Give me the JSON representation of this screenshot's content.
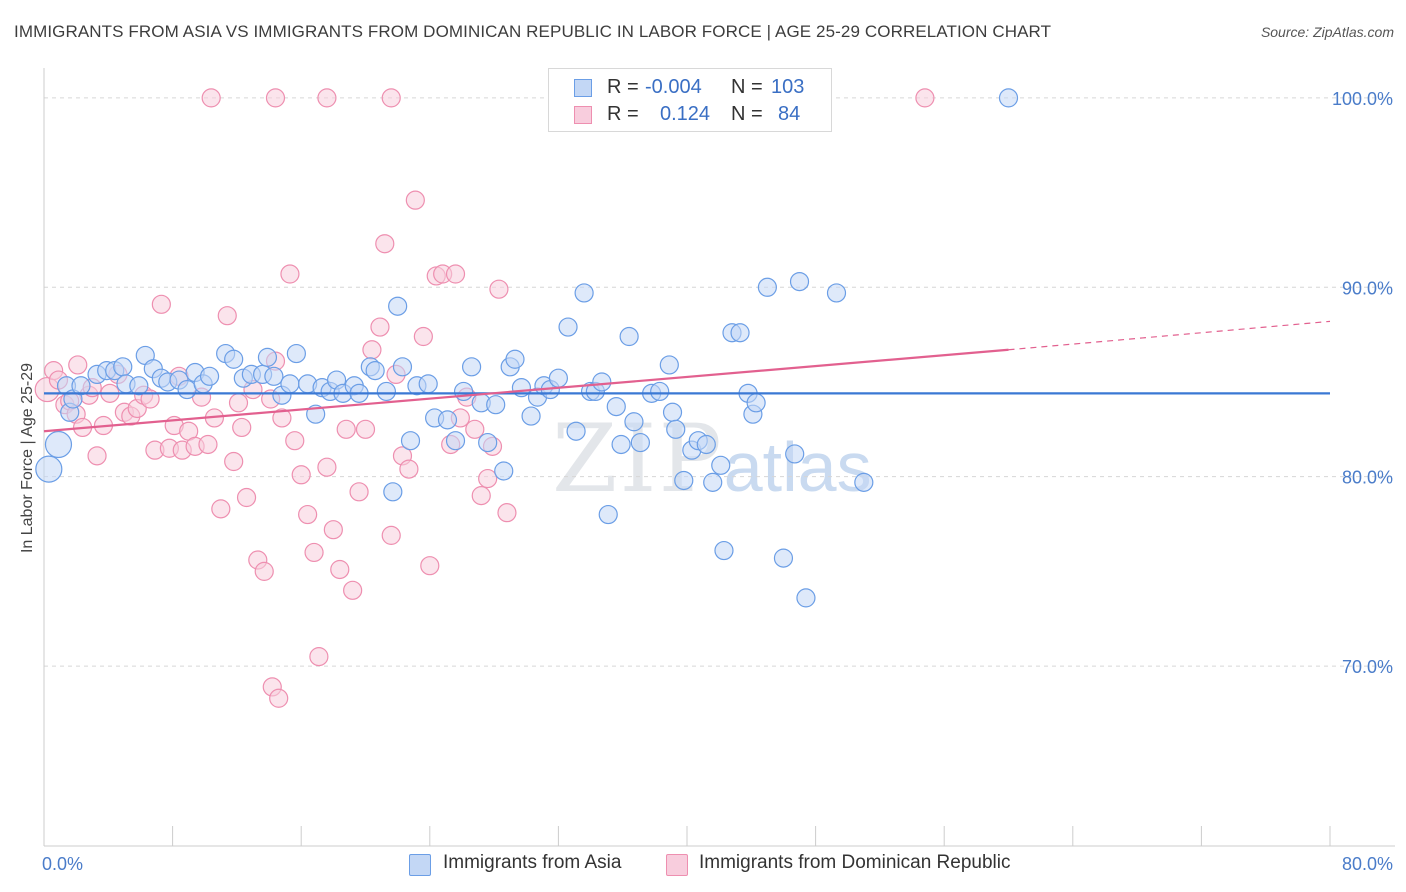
{
  "header": {
    "title": "IMMIGRANTS FROM ASIA VS IMMIGRANTS FROM DOMINICAN REPUBLIC IN LABOR FORCE | AGE 25-29 CORRELATION CHART",
    "source": "Source: ZipAtlas.com"
  },
  "watermark": {
    "zip": "ZIP",
    "atlas": "atlas"
  },
  "legend": {
    "rows": [
      {
        "r_label": "R =",
        "r_value": "-0.004",
        "n_label": "N =",
        "n_value": "103"
      },
      {
        "r_label": "R =",
        "r_value": "0.124",
        "n_label": "N =",
        "n_value": "84"
      }
    ]
  },
  "colors": {
    "asia": "#6b9ee6",
    "asia_fill": "#c3d7f5",
    "asia_line": "#3a78d4",
    "dom": "#ee8fb0",
    "dom_fill": "#f8cddd",
    "dom_line": "#e2608f",
    "tick_text": "#4a7cc9"
  },
  "chart_data": {
    "type": "scatter",
    "title": "IMMIGRANTS FROM ASIA VS IMMIGRANTS FROM DOMINICAN REPUBLIC IN LABOR FORCE | AGE 25-29 CORRELATION CHART",
    "xlabel": "",
    "ylabel": "In Labor Force | Age 25-29",
    "xlim": [
      0,
      80
    ],
    "ylim": [
      60.5,
      102
    ],
    "x_tick_labels": [
      "0.0%",
      "80.0%"
    ],
    "y_ticks": [
      70,
      80,
      90,
      100
    ],
    "y_tick_labels": [
      "70.0%",
      "80.0%",
      "90.0%",
      "100.0%"
    ],
    "grid": true,
    "legend_position": "top-center",
    "series": [
      {
        "name": "Immigrants from Asia",
        "color": "#6b9ee6",
        "trend": {
          "x": [
            0,
            80
          ],
          "y": [
            84.4,
            84.4
          ]
        },
        "points": [
          [
            0.3,
            80.4
          ],
          [
            0.9,
            81.7
          ],
          [
            1.4,
            84.8
          ],
          [
            1.6,
            83.4
          ],
          [
            1.8,
            84.1
          ],
          [
            2.3,
            84.8
          ],
          [
            3.3,
            85.4
          ],
          [
            3.9,
            85.6
          ],
          [
            4.4,
            85.6
          ],
          [
            4.9,
            85.8
          ],
          [
            5.1,
            84.9
          ],
          [
            5.9,
            84.8
          ],
          [
            6.3,
            86.4
          ],
          [
            6.8,
            85.7
          ],
          [
            7.3,
            85.2
          ],
          [
            7.7,
            85.0
          ],
          [
            8.4,
            85.1
          ],
          [
            8.9,
            84.6
          ],
          [
            9.4,
            85.5
          ],
          [
            9.9,
            84.9
          ],
          [
            10.3,
            85.3
          ],
          [
            11.3,
            86.5
          ],
          [
            11.8,
            86.2
          ],
          [
            12.4,
            85.2
          ],
          [
            12.9,
            85.4
          ],
          [
            13.6,
            85.4
          ],
          [
            13.9,
            86.3
          ],
          [
            14.3,
            85.3
          ],
          [
            14.8,
            84.3
          ],
          [
            15.3,
            84.9
          ],
          [
            15.7,
            86.5
          ],
          [
            16.4,
            84.9
          ],
          [
            16.9,
            83.3
          ],
          [
            17.3,
            84.7
          ],
          [
            17.8,
            84.5
          ],
          [
            18.2,
            85.1
          ],
          [
            18.6,
            84.4
          ],
          [
            19.3,
            84.8
          ],
          [
            19.6,
            84.4
          ],
          [
            20.3,
            85.8
          ],
          [
            20.6,
            85.6
          ],
          [
            21.3,
            84.5
          ],
          [
            21.7,
            79.2
          ],
          [
            22.0,
            89.0
          ],
          [
            22.3,
            85.8
          ],
          [
            22.8,
            81.9
          ],
          [
            23.2,
            84.8
          ],
          [
            23.9,
            84.9
          ],
          [
            24.3,
            83.1
          ],
          [
            25.1,
            83.0
          ],
          [
            25.6,
            81.9
          ],
          [
            26.1,
            84.5
          ],
          [
            26.6,
            85.8
          ],
          [
            27.2,
            83.9
          ],
          [
            27.6,
            81.8
          ],
          [
            28.1,
            83.8
          ],
          [
            28.6,
            80.3
          ],
          [
            29.0,
            85.8
          ],
          [
            29.3,
            86.2
          ],
          [
            29.7,
            84.7
          ],
          [
            30.3,
            83.2
          ],
          [
            30.7,
            84.2
          ],
          [
            31.1,
            84.8
          ],
          [
            31.5,
            84.6
          ],
          [
            32.0,
            85.2
          ],
          [
            32.6,
            87.9
          ],
          [
            33.1,
            82.4
          ],
          [
            33.6,
            89.7
          ],
          [
            34.0,
            84.5
          ],
          [
            34.3,
            84.5
          ],
          [
            34.7,
            85.0
          ],
          [
            35.1,
            78.0
          ],
          [
            35.6,
            83.7
          ],
          [
            35.9,
            81.7
          ],
          [
            36.4,
            87.4
          ],
          [
            36.7,
            82.9
          ],
          [
            37.1,
            81.8
          ],
          [
            37.8,
            84.4
          ],
          [
            38.3,
            84.5
          ],
          [
            38.9,
            85.9
          ],
          [
            39.1,
            83.4
          ],
          [
            39.3,
            82.5
          ],
          [
            39.8,
            79.8
          ],
          [
            40.3,
            81.4
          ],
          [
            40.7,
            81.9
          ],
          [
            41.2,
            81.7
          ],
          [
            41.6,
            79.7
          ],
          [
            42.1,
            80.6
          ],
          [
            42.3,
            76.1
          ],
          [
            42.8,
            87.6
          ],
          [
            43.3,
            87.6
          ],
          [
            43.8,
            84.4
          ],
          [
            44.1,
            83.3
          ],
          [
            44.3,
            83.9
          ],
          [
            45.0,
            90.0
          ],
          [
            46.0,
            75.7
          ],
          [
            46.7,
            81.2
          ],
          [
            47.0,
            90.3
          ],
          [
            47.4,
            73.6
          ],
          [
            47.9,
            100.0
          ],
          [
            49.3,
            89.7
          ],
          [
            51.0,
            79.7
          ],
          [
            60.0,
            100.0
          ]
        ]
      },
      {
        "name": "Immigrants from Dominican Republic",
        "color": "#ee8fb0",
        "trend": {
          "x": [
            0,
            60
          ],
          "y": [
            82.4,
            86.7
          ]
        },
        "trend_dashed_extension": {
          "x": [
            60,
            80
          ],
          "y": [
            86.7,
            88.2
          ]
        },
        "points": [
          [
            0.2,
            84.6
          ],
          [
            0.6,
            85.6
          ],
          [
            0.9,
            85.1
          ],
          [
            1.3,
            83.8
          ],
          [
            1.6,
            84.0
          ],
          [
            2.0,
            83.3
          ],
          [
            2.4,
            82.6
          ],
          [
            2.8,
            84.3
          ],
          [
            3.3,
            81.1
          ],
          [
            3.7,
            82.7
          ],
          [
            4.1,
            84.4
          ],
          [
            4.6,
            85.4
          ],
          [
            5.0,
            83.4
          ],
          [
            5.4,
            83.2
          ],
          [
            5.8,
            83.6
          ],
          [
            6.2,
            84.3
          ],
          [
            6.6,
            84.1
          ],
          [
            6.9,
            81.4
          ],
          [
            7.3,
            89.1
          ],
          [
            7.8,
            81.5
          ],
          [
            8.1,
            82.7
          ],
          [
            8.6,
            81.4
          ],
          [
            9.0,
            82.4
          ],
          [
            9.4,
            81.6
          ],
          [
            9.8,
            84.2
          ],
          [
            10.2,
            81.7
          ],
          [
            10.6,
            83.1
          ],
          [
            11.0,
            78.3
          ],
          [
            11.4,
            88.5
          ],
          [
            11.8,
            80.8
          ],
          [
            12.3,
            82.6
          ],
          [
            12.6,
            78.9
          ],
          [
            13.0,
            84.6
          ],
          [
            13.3,
            75.6
          ],
          [
            13.7,
            75.0
          ],
          [
            14.1,
            84.1
          ],
          [
            14.4,
            86.1
          ],
          [
            14.8,
            83.1
          ],
          [
            15.3,
            90.7
          ],
          [
            15.6,
            81.9
          ],
          [
            16.0,
            80.1
          ],
          [
            16.4,
            78.0
          ],
          [
            16.8,
            76.0
          ],
          [
            17.1,
            70.5
          ],
          [
            17.6,
            80.5
          ],
          [
            18.0,
            77.2
          ],
          [
            18.4,
            75.1
          ],
          [
            18.8,
            82.5
          ],
          [
            19.2,
            74.0
          ],
          [
            19.6,
            79.2
          ],
          [
            20.0,
            82.5
          ],
          [
            20.4,
            86.7
          ],
          [
            20.9,
            87.9
          ],
          [
            21.2,
            92.3
          ],
          [
            21.6,
            76.9
          ],
          [
            21.9,
            85.4
          ],
          [
            22.3,
            81.1
          ],
          [
            22.7,
            80.4
          ],
          [
            23.1,
            94.6
          ],
          [
            23.6,
            87.4
          ],
          [
            24.0,
            75.3
          ],
          [
            24.4,
            90.6
          ],
          [
            24.8,
            90.7
          ],
          [
            25.3,
            81.7
          ],
          [
            25.6,
            90.7
          ],
          [
            25.9,
            83.1
          ],
          [
            26.3,
            84.2
          ],
          [
            26.8,
            82.5
          ],
          [
            27.2,
            79.0
          ],
          [
            27.6,
            79.9
          ],
          [
            27.9,
            81.6
          ],
          [
            28.3,
            89.9
          ],
          [
            28.8,
            78.1
          ],
          [
            10.4,
            100.0
          ],
          [
            14.4,
            100.0
          ],
          [
            17.6,
            100.0
          ],
          [
            21.6,
            100.0
          ],
          [
            14.2,
            68.9
          ],
          [
            14.6,
            68.3
          ],
          [
            54.8,
            100.0
          ],
          [
            2.1,
            85.9
          ],
          [
            3.0,
            84.7
          ],
          [
            8.4,
            85.3
          ],
          [
            12.1,
            83.9
          ]
        ]
      }
    ]
  },
  "bottom_legend": {
    "items": [
      {
        "label": "Immigrants from Asia"
      },
      {
        "label": "Immigrants from Dominican Republic"
      }
    ]
  }
}
